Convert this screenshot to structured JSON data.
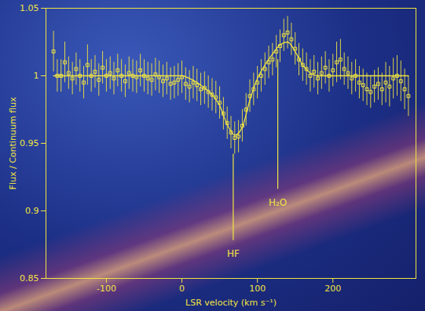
{
  "chart_data": {
    "type": "scatter",
    "x_label": "LSR velocity (km s⁻¹)",
    "y_label": "Flux / Continuum flux",
    "xlim": [
      -180,
      310
    ],
    "xticks": [
      -100,
      0,
      100,
      200
    ],
    "ylim": [
      0.85,
      1.05
    ],
    "yticks": [
      0.85,
      0.9,
      0.95,
      1,
      1.05
    ],
    "color": "#f0e442",
    "series": [
      {
        "type": "scatter",
        "marker": "square",
        "color": "#f0e442",
        "x": [
          -170,
          -165,
          -160,
          -155,
          -150,
          -145,
          -140,
          -135,
          -130,
          -125,
          -120,
          -115,
          -110,
          -105,
          -100,
          -95,
          -90,
          -85,
          -80,
          -75,
          -70,
          -65,
          -60,
          -55,
          -50,
          -45,
          -40,
          -35,
          -30,
          -25,
          -20,
          -15,
          -10,
          -5,
          0,
          5,
          10,
          15,
          20,
          25,
          30,
          35,
          40,
          45,
          50,
          55,
          60,
          65,
          70,
          75,
          80,
          85,
          90,
          95,
          100,
          105,
          110,
          115,
          120,
          125,
          130,
          135,
          140,
          145,
          150,
          155,
          160,
          165,
          170,
          175,
          180,
          185,
          190,
          195,
          200,
          205,
          210,
          215,
          220,
          225,
          230,
          235,
          240,
          245,
          250,
          255,
          260,
          265,
          270,
          275,
          280,
          285,
          290,
          295,
          300
        ],
        "values": [
          1.018,
          1.0,
          1.0,
          1.01,
          1.002,
          0.998,
          1.005,
          1.0,
          0.995,
          1.008,
          1.0,
          1.003,
          0.997,
          1.006,
          1.0,
          1.002,
          0.998,
          1.004,
          1.0,
          0.996,
          1.002,
          1.0,
          0.999,
          1.004,
          1.0,
          0.998,
          0.997,
          1.001,
          0.999,
          0.996,
          0.998,
          0.994,
          0.995,
          0.997,
          0.999,
          0.994,
          0.992,
          0.995,
          0.993,
          0.99,
          0.991,
          0.988,
          0.986,
          0.984,
          0.98,
          0.972,
          0.965,
          0.958,
          0.954,
          0.955,
          0.963,
          0.975,
          0.985,
          0.99,
          0.995,
          1.0,
          1.005,
          1.01,
          1.012,
          1.018,
          1.022,
          1.03,
          1.032,
          1.027,
          1.02,
          1.012,
          1.008,
          1.005,
          1.0,
          1.003,
          0.998,
          1.002,
          1.006,
          1.0,
          1.004,
          1.01,
          1.012,
          1.005,
          1.002,
          0.998,
          1.0,
          0.995,
          0.993,
          0.99,
          0.988,
          0.992,
          0.994,
          0.99,
          0.995,
          0.992,
          0.998,
          1.0,
          0.996,
          0.99,
          0.985
        ],
        "errors": [
          0.015,
          0.012,
          0.012,
          0.015,
          0.012,
          0.012,
          0.012,
          0.012,
          0.012,
          0.015,
          0.012,
          0.012,
          0.012,
          0.012,
          0.012,
          0.012,
          0.012,
          0.012,
          0.012,
          0.012,
          0.012,
          0.012,
          0.012,
          0.012,
          0.012,
          0.012,
          0.012,
          0.012,
          0.012,
          0.012,
          0.012,
          0.012,
          0.012,
          0.012,
          0.012,
          0.012,
          0.012,
          0.012,
          0.012,
          0.012,
          0.012,
          0.012,
          0.012,
          0.012,
          0.012,
          0.012,
          0.012,
          0.012,
          0.012,
          0.012,
          0.012,
          0.012,
          0.012,
          0.012,
          0.012,
          0.012,
          0.012,
          0.012,
          0.012,
          0.012,
          0.012,
          0.012,
          0.012,
          0.012,
          0.012,
          0.012,
          0.012,
          0.012,
          0.012,
          0.012,
          0.012,
          0.012,
          0.012,
          0.012,
          0.012,
          0.015,
          0.015,
          0.012,
          0.012,
          0.012,
          0.012,
          0.012,
          0.012,
          0.012,
          0.012,
          0.012,
          0.012,
          0.012,
          0.015,
          0.015,
          0.015,
          0.015,
          0.015,
          0.015,
          0.015
        ]
      },
      {
        "type": "line",
        "color": "#f0e442",
        "x": [
          -170,
          -160,
          -150,
          -140,
          -130,
          -120,
          -110,
          -100,
          -90,
          -80,
          -70,
          -60,
          -50,
          -40,
          -30,
          -20,
          -10,
          0,
          10,
          20,
          30,
          40,
          50,
          60,
          70,
          80,
          90,
          100,
          110,
          120,
          130,
          140,
          150,
          160,
          170,
          180,
          190,
          200,
          210,
          220,
          230,
          240,
          250,
          260,
          270,
          280,
          290,
          300
        ],
        "values": [
          1.0,
          1.0,
          1.0,
          1.0,
          1.0,
          1.0,
          1.0,
          1.0,
          1.0,
          1.0,
          1.0,
          1.0,
          1.0,
          1.0,
          1.0,
          1.0,
          1.0,
          1.0,
          0.998,
          0.995,
          0.991,
          0.986,
          0.978,
          0.964,
          0.956,
          0.962,
          0.982,
          0.998,
          1.008,
          1.016,
          1.023,
          1.025,
          1.018,
          1.008,
          1.002,
          1.0,
          1.0,
          1.0,
          1.0,
          1.0,
          1.0,
          1.0,
          1.0,
          1.0,
          1.0,
          1.0,
          1.0,
          1.0
        ]
      }
    ],
    "annotations": [
      {
        "text": "HF",
        "x": 68,
        "y": 0.868,
        "line": [
          0.942,
          0.878
        ]
      },
      {
        "text": "H₂O",
        "x": 127,
        "y": 0.906,
        "line": [
          1.012,
          0.916
        ]
      }
    ]
  }
}
